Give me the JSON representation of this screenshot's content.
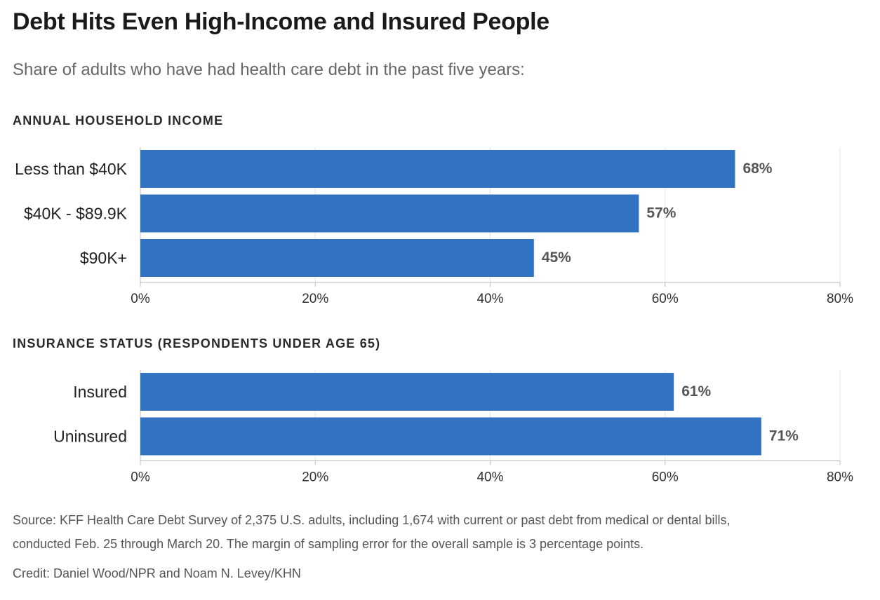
{
  "title": "Debt Hits Even High-Income and Insured People",
  "subtitle": "Share of adults who have had health care debt in the past five years:",
  "chart_data": [
    {
      "type": "bar",
      "orientation": "horizontal",
      "title": "ANNUAL HOUSEHOLD INCOME",
      "categories": [
        "Less than $40K",
        "$40K - $89.9K",
        "$90K+"
      ],
      "values": [
        68,
        57,
        45
      ],
      "value_labels": [
        "68%",
        "57%",
        "45%"
      ],
      "xlim": [
        0,
        80
      ],
      "ticks": [
        0,
        20,
        40,
        60,
        80
      ],
      "tick_labels": [
        "0%",
        "20%",
        "40%",
        "60%",
        "80%"
      ],
      "grid": true,
      "bar_color": "#3173c1"
    },
    {
      "type": "bar",
      "orientation": "horizontal",
      "title": "INSURANCE STATUS (RESPONDENTS UNDER AGE 65)",
      "categories": [
        "Insured",
        "Uninsured"
      ],
      "values": [
        61,
        71
      ],
      "value_labels": [
        "61%",
        "71%"
      ],
      "xlim": [
        0,
        80
      ],
      "ticks": [
        0,
        20,
        40,
        60,
        80
      ],
      "tick_labels": [
        "0%",
        "20%",
        "40%",
        "60%",
        "80%"
      ],
      "grid": true,
      "bar_color": "#3173c1"
    }
  ],
  "footer": {
    "source_line1": "Source: KFF Health Care Debt Survey of 2,375 U.S. adults, including 1,674 with current or past debt from medical or dental bills,",
    "source_line2": "conducted Feb. 25 through March 20. The margin of sampling error for the overall sample is 3 percentage points.",
    "credit": "Credit: Daniel Wood/NPR and Noam N. Levey/KHN"
  }
}
